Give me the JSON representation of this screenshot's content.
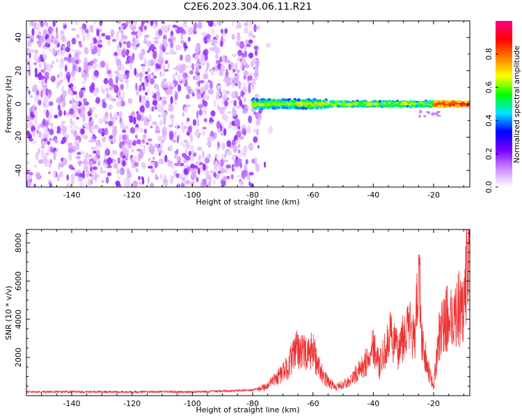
{
  "title": "C2E6.2023.304.06.11.R21",
  "chart_data": [
    {
      "type": "heatmap",
      "xlabel": "Height of straight line (km)",
      "ylabel": "Frequency (Hz)",
      "xlim": [
        -155,
        -8
      ],
      "ylim": [
        -50,
        50
      ],
      "xticks": [
        -140,
        -120,
        -100,
        -80,
        -60,
        -40,
        -20
      ],
      "yticks": [
        -40,
        -20,
        0,
        20,
        40
      ],
      "colorbar": {
        "label": "Normalized spectral amplitude",
        "range": [
          0,
          1
        ],
        "ticks": [
          0.0,
          0.2,
          0.4,
          0.6,
          0.8
        ],
        "colormap": [
          "#ffffff",
          "#cc88ff",
          "#7a00ff",
          "#0000ff",
          "#00e5ff",
          "#00ff00",
          "#ffff00",
          "#ff7f00",
          "#ff0000",
          "#ff0088"
        ]
      },
      "regions": [
        {
          "x": [
            -155,
            -78
          ],
          "y": [
            -50,
            50
          ],
          "amplitude": [
            0.05,
            0.2
          ],
          "description_only": false
        },
        {
          "x": [
            -80,
            -8
          ],
          "y": [
            -3,
            3
          ],
          "amplitude": [
            0.2,
            0.8
          ]
        }
      ]
    },
    {
      "type": "line",
      "xlabel": "Height of straight line (km)",
      "ylabel": "SNR (10 * v/v)",
      "xlim": [
        -155,
        -8
      ],
      "ylim": [
        0,
        8700
      ],
      "xticks": [
        -140,
        -120,
        -100,
        -80,
        -60,
        -40,
        -20
      ],
      "yticks": [
        2000,
        4000,
        6000,
        8000
      ],
      "color": "#ee3333",
      "series": [
        {
          "x": [
            -155,
            -140,
            -120,
            -100,
            -85,
            -80,
            -75,
            -70,
            -68,
            -66,
            -64,
            -62,
            -60,
            -58,
            -56,
            -54,
            -52,
            -50,
            -48,
            -46,
            -44,
            -42,
            -40,
            -38,
            -36,
            -34,
            -32,
            -30,
            -28,
            -26,
            -25,
            -24,
            -22,
            -20,
            -18,
            -16,
            -14,
            -12,
            -10,
            -8
          ],
          "y": [
            200,
            200,
            200,
            200,
            250,
            300,
            500,
            1200,
            1600,
            2300,
            2500,
            2000,
            2400,
            1500,
            900,
            600,
            450,
            600,
            700,
            1100,
            1400,
            1800,
            2800,
            1500,
            2400,
            3200,
            2300,
            3300,
            3600,
            2800,
            7200,
            3200,
            1500,
            500,
            3300,
            4000,
            4100,
            4500,
            4700,
            8700
          ]
        }
      ]
    }
  ]
}
